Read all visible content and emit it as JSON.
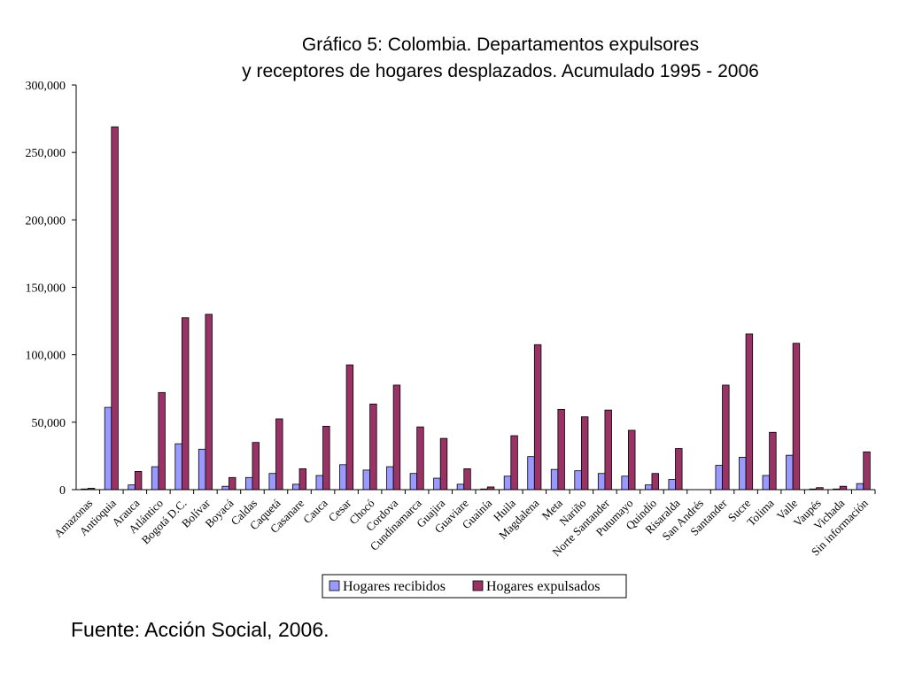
{
  "chart_data": {
    "type": "bar",
    "title": [
      "Gráfico 5: Colombia. Departamentos expulsores",
      "y receptores de hogares desplazados. Acumulado 1995 - 2006"
    ],
    "xlabel": "",
    "ylabel": "",
    "ylim": [
      0,
      300000
    ],
    "yticks": [
      {
        "value": 0,
        "label": "0"
      },
      {
        "value": 50000,
        "label": "50,000"
      },
      {
        "value": 100000,
        "label": "100,000"
      },
      {
        "value": 150000,
        "label": "150,000"
      },
      {
        "value": 200000,
        "label": "200,000"
      },
      {
        "value": 250000,
        "label": "250,000"
      },
      {
        "value": 300000,
        "label": "300,000"
      }
    ],
    "grid": false,
    "legend": "bottom",
    "categories": [
      "Amazonas",
      "Antioquia",
      "Arauca",
      "Atlántico",
      "Bogotá D.C.",
      "Bolívar",
      "Boyacá",
      "Caldas",
      "Caquetá",
      "Casanare",
      "Cauca",
      "Cesar",
      "Chocó",
      "Cordova",
      "Cundinamarca",
      "Guajira",
      "Guaviare",
      "Guainía",
      "Huila",
      "Magdalena",
      "Meta",
      "Nariño",
      "Norte Santander",
      "Putumayo",
      "Quindío",
      "Risaralda",
      "San Andrés",
      "Santander",
      "Sucre",
      "Tolima",
      "Valle",
      "Vaupés",
      "Vichada",
      "Sin información"
    ],
    "series": [
      {
        "name": "Hogares recibidos",
        "color": "#9999ff",
        "values": [
          500,
          61000,
          3500,
          17000,
          34000,
          30000,
          2500,
          9000,
          12000,
          4000,
          10500,
          18500,
          14500,
          17000,
          12000,
          8500,
          4000,
          500,
          10000,
          24500,
          15000,
          14000,
          12000,
          10000,
          3500,
          7500,
          0,
          18000,
          24000,
          10500,
          25500,
          500,
          500,
          4500
        ]
      },
      {
        "name": "Hogares expulsados",
        "color": "#993366",
        "values": [
          1000,
          269000,
          13500,
          72000,
          127500,
          130000,
          9000,
          35000,
          52500,
          15500,
          47000,
          92500,
          63500,
          77500,
          46500,
          38000,
          15500,
          2000,
          40000,
          107500,
          59500,
          54000,
          59000,
          44000,
          12000,
          30500,
          0,
          77500,
          115500,
          42500,
          108500,
          1500,
          2500,
          28000
        ]
      }
    ]
  },
  "source": "Fuente: Acción Social, 2006."
}
